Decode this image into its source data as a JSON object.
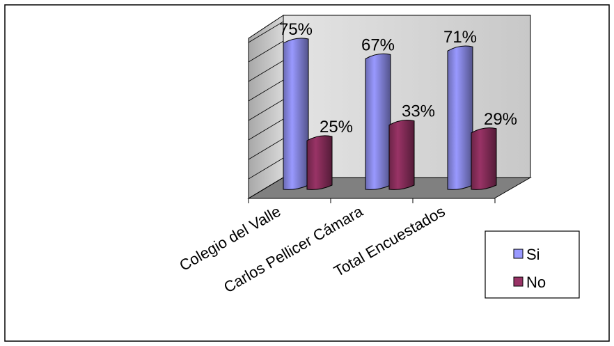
{
  "chart_data": {
    "type": "bar3d",
    "categories": [
      "Colegio del Valle",
      "Carlos Pellicer Cámara",
      "Total Encuestados"
    ],
    "series": [
      {
        "name": "Si",
        "color": "#9999ff",
        "values": [
          75,
          67,
          71
        ],
        "value_labels": [
          "75%",
          "67%",
          "71%"
        ]
      },
      {
        "name": "No",
        "color": "#993366",
        "values": [
          25,
          33,
          29
        ],
        "value_labels": [
          "25%",
          "33%",
          "29%"
        ]
      }
    ],
    "ylim": [
      0,
      80
    ],
    "yticks": [
      0,
      10,
      20,
      30,
      40,
      50,
      60,
      70,
      80
    ],
    "grid": true,
    "legend": "right"
  }
}
